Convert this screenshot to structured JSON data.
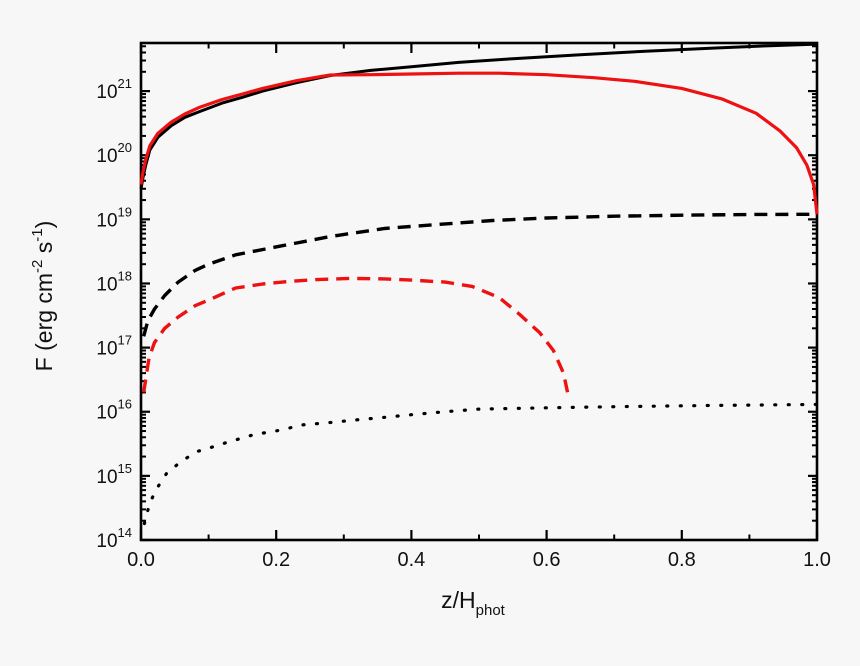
{
  "figure": {
    "background": "#f7f7f8",
    "frame_color": "#000000",
    "accent_red": "#ee1111",
    "accent_black": "#000000"
  },
  "x_axis": {
    "label_parts": [
      {
        "text": "z/H"
      },
      {
        "sub": "phot"
      }
    ],
    "min": 0.0,
    "max": 1.0,
    "major_ticks": [
      0.0,
      0.2,
      0.4,
      0.6,
      0.8,
      1.0
    ],
    "major_tick_labels": [
      "0.0",
      "0.2",
      "0.4",
      "0.6",
      "0.8",
      "1.0"
    ],
    "minor_ticks": [
      0.1,
      0.3,
      0.5,
      0.7,
      0.9
    ]
  },
  "y_axis": {
    "scale": "log",
    "log_min": 14,
    "log_max": 21.75,
    "tick_label_base": "10",
    "decade_exponents": [
      14,
      15,
      16,
      17,
      18,
      19,
      20,
      21
    ],
    "label_parts": [
      {
        "text": "F (erg cm"
      },
      {
        "sup": "-2"
      },
      {
        "text": " s"
      },
      {
        "sup": "-1"
      },
      {
        "text": ")"
      }
    ]
  },
  "chart_data": {
    "type": "line",
    "title": "",
    "xlabel": "z/H_phot",
    "ylabel": "F (erg cm^-2 s^-1)",
    "x_range": [
      0.0,
      1.0
    ],
    "y_range": [
      100000000000000.0,
      5.6e+21
    ],
    "grid": false,
    "legend": "none",
    "series": [
      {
        "name": "black-solid",
        "color": "#000000",
        "style": "solid",
        "width": 3,
        "x": [
          0.0,
          0.003,
          0.007,
          0.013,
          0.025,
          0.045,
          0.065,
          0.087,
          0.12,
          0.15,
          0.18,
          0.23,
          0.28,
          0.34,
          0.4,
          0.47,
          0.55,
          0.65,
          0.75,
          0.85,
          0.93,
          1.0
        ],
        "F": [
          3e+19,
          4.5e+19,
          7e+19,
          1.2e+20,
          1.9e+20,
          2.9e+20,
          3.9e+20,
          4.8e+20,
          6.5e+20,
          8e+20,
          1e+21,
          1.35e+21,
          1.75e+21,
          2.1e+21,
          2.4e+21,
          2.8e+21,
          3.2e+21,
          3.7e+21,
          4.2e+21,
          4.7e+21,
          5.1e+21,
          5.4e+21
        ]
      },
      {
        "name": "red-solid",
        "color": "#ee1111",
        "style": "solid",
        "width": 3.2,
        "x": [
          0.0,
          0.003,
          0.007,
          0.013,
          0.025,
          0.045,
          0.065,
          0.087,
          0.12,
          0.15,
          0.18,
          0.23,
          0.28,
          0.34,
          0.4,
          0.47,
          0.53,
          0.6,
          0.67,
          0.73,
          0.8,
          0.86,
          0.91,
          0.945,
          0.97,
          0.985,
          0.995,
          1.0
        ],
        "F": [
          3.5e+19,
          5.5e+19,
          8.5e+19,
          1.4e+20,
          2.2e+20,
          3.3e+20,
          4.4e+20,
          5.6e+20,
          7.4e+20,
          9e+20,
          1.1e+21,
          1.45e+21,
          1.78e+21,
          1.8e+21,
          1.85e+21,
          1.9e+21,
          1.9e+21,
          1.8e+21,
          1.62e+21,
          1.42e+21,
          1.1e+21,
          7.5e+20,
          4.5e+20,
          2.4e+20,
          1.3e+20,
          7e+19,
          3.5e+19,
          1.2e+19
        ]
      },
      {
        "name": "black-dashed",
        "color": "#000000",
        "style": "dashed",
        "width": 3.4,
        "x": [
          0.004,
          0.01,
          0.02,
          0.035,
          0.055,
          0.08,
          0.1,
          0.14,
          0.21,
          0.28,
          0.36,
          0.43,
          0.52,
          0.6,
          0.7,
          0.8,
          0.9,
          1.0
        ],
        "F": [
          1.5e+17,
          2.6e+17,
          4e+17,
          6.5e+17,
          1.05e+18,
          1.6e+18,
          2e+18,
          2.8e+18,
          3.9e+18,
          5.4e+18,
          7.2e+18,
          8.2e+18,
          9.6e+18,
          1.05e+19,
          1.12e+19,
          1.16e+19,
          1.19e+19,
          1.2e+19
        ]
      },
      {
        "name": "red-dashed",
        "color": "#ee1111",
        "style": "dashed",
        "width": 3.4,
        "x": [
          0.004,
          0.012,
          0.02,
          0.035,
          0.055,
          0.08,
          0.1,
          0.14,
          0.18,
          0.22,
          0.26,
          0.31,
          0.36,
          0.4,
          0.45,
          0.49,
          0.53,
          0.56,
          0.59,
          0.61,
          0.625,
          0.632
        ],
        "F": [
          2e+16,
          7e+16,
          1.2e+17,
          2e+17,
          3e+17,
          4.5e+17,
          5.5e+17,
          8.5e+17,
          9.8e+17,
          1.08e+18,
          1.15e+18,
          1.2e+18,
          1.18e+18,
          1.13e+18,
          1.05e+18,
          9e+17,
          6e+17,
          3.3e+17,
          1.7e+17,
          9e+16,
          4e+16,
          1.8e+16
        ]
      },
      {
        "name": "black-dotted",
        "color": "#000000",
        "style": "dotted",
        "width": 3.2,
        "x": [
          0.005,
          0.013,
          0.024,
          0.038,
          0.06,
          0.083,
          0.1,
          0.13,
          0.15,
          0.17,
          0.19,
          0.215,
          0.235,
          0.28,
          0.32,
          0.35,
          0.4,
          0.45,
          0.5,
          0.6,
          0.7,
          0.8,
          0.9,
          1.0
        ],
        "F": [
          180000000000000.0,
          380000000000000.0,
          650000000000000.0,
          1100000000000000.0,
          1700000000000000.0,
          2400000000000000.0,
          2700000000000000.0,
          3400000000000000.0,
          3900000000000000.0,
          4500000000000000.0,
          4800000000000000.0,
          5400000000000000.0,
          6200000000000000.0,
          6800000000000000.0,
          7500000000000000.0,
          8000000000000000.0,
          9000000000000000.0,
          1e+16,
          1.1e+16,
          1.15e+16,
          1.2e+16,
          1.24e+16,
          1.27e+16,
          1.3e+16
        ]
      }
    ]
  }
}
